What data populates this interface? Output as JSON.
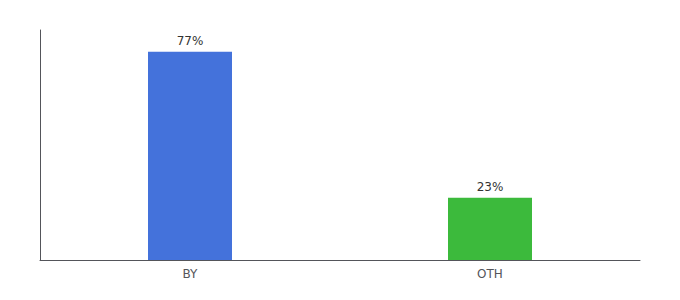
{
  "chart_data": {
    "type": "bar",
    "categories": [
      "BY",
      "OTH"
    ],
    "values": [
      77,
      23
    ],
    "value_labels": [
      "77%",
      "23%"
    ],
    "colors": [
      "#4472db",
      "#3cba3c"
    ],
    "ylim": [
      0,
      85
    ],
    "data_labels": true,
    "tick_labels": "x",
    "grid": false
  }
}
